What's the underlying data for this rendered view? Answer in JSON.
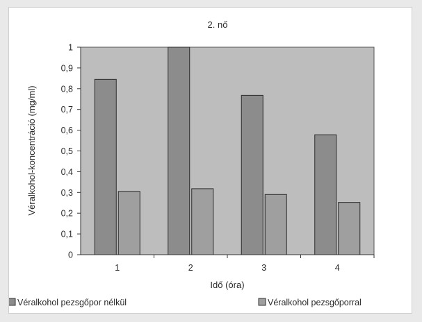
{
  "chart_data": {
    "type": "bar",
    "title": "2. nő",
    "xlabel": "Idő (óra)",
    "ylabel": "Véralkohol-koncentráció (mg/ml)",
    "categories": [
      "1",
      "2",
      "3",
      "4"
    ],
    "ylim": [
      0,
      1
    ],
    "yticks": [
      "0",
      "0,1",
      "0,2",
      "0,3",
      "0,4",
      "0,5",
      "0,6",
      "0,7",
      "0,8",
      "0,9",
      "1"
    ],
    "grid": false,
    "legend_position": "bottom",
    "plot_background": "#bdbdbd",
    "series": [
      {
        "name": "Véralkohol pezsgőpor nélkül",
        "values": [
          0.845,
          1.0,
          0.768,
          0.578
        ],
        "color": "#8c8c8c"
      },
      {
        "name": "Véralkohol pezsgőporral",
        "values": [
          0.305,
          0.318,
          0.29,
          0.252
        ],
        "color": "#9f9f9f"
      }
    ]
  }
}
